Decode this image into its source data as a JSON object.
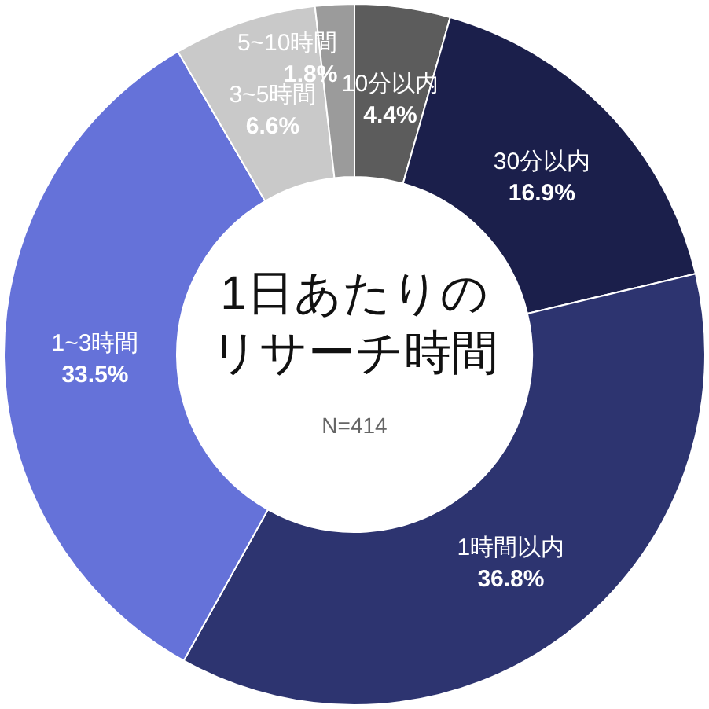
{
  "chart_data": {
    "type": "donut",
    "title": "1日あたりのリサーチ時間",
    "annotations": [
      "N=414"
    ],
    "categories": [
      "10分以内",
      "30分以内",
      "1時間以内",
      "1~3時間",
      "3~5時間",
      "5~10時間"
    ],
    "values": [
      4.4,
      16.9,
      36.8,
      33.5,
      6.6,
      1.8
    ],
    "value_labels": [
      "4.4%",
      "16.9%",
      "36.8%",
      "33.5%",
      "6.6%",
      "1.8%"
    ],
    "colors": [
      "#5c5c5c",
      "#1b1f4b",
      "#2d3470",
      "#6572d9",
      "#c9c9c9",
      "#9b9b9b"
    ]
  }
}
